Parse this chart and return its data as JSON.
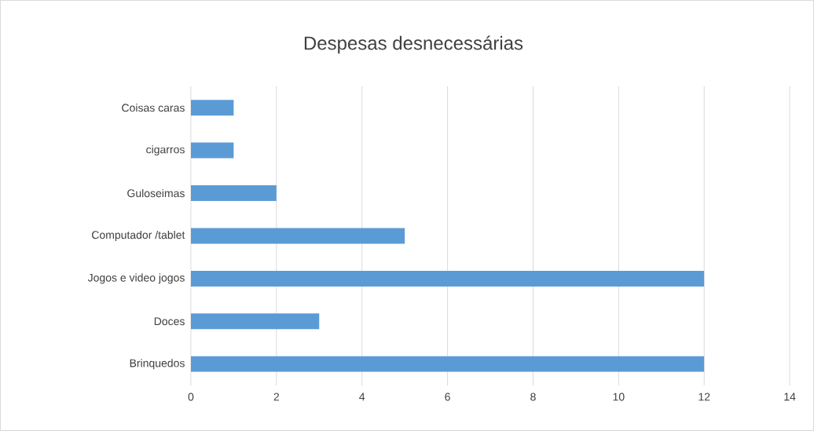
{
  "chart_data": {
    "type": "bar",
    "orientation": "horizontal",
    "title": "Despesas desnecessárias",
    "categories": [
      "Coisas caras",
      "cigarros",
      "Guloseimas",
      "Computador /tablet",
      "Jogos e video jogos",
      "Doces",
      "Brinquedos"
    ],
    "values": [
      1,
      1,
      2,
      5,
      12,
      3,
      12
    ],
    "color": "#5b9bd5",
    "xlim": [
      0,
      14
    ],
    "xticks": [
      0,
      2,
      4,
      6,
      8,
      10,
      12,
      14
    ],
    "grid": "x"
  }
}
